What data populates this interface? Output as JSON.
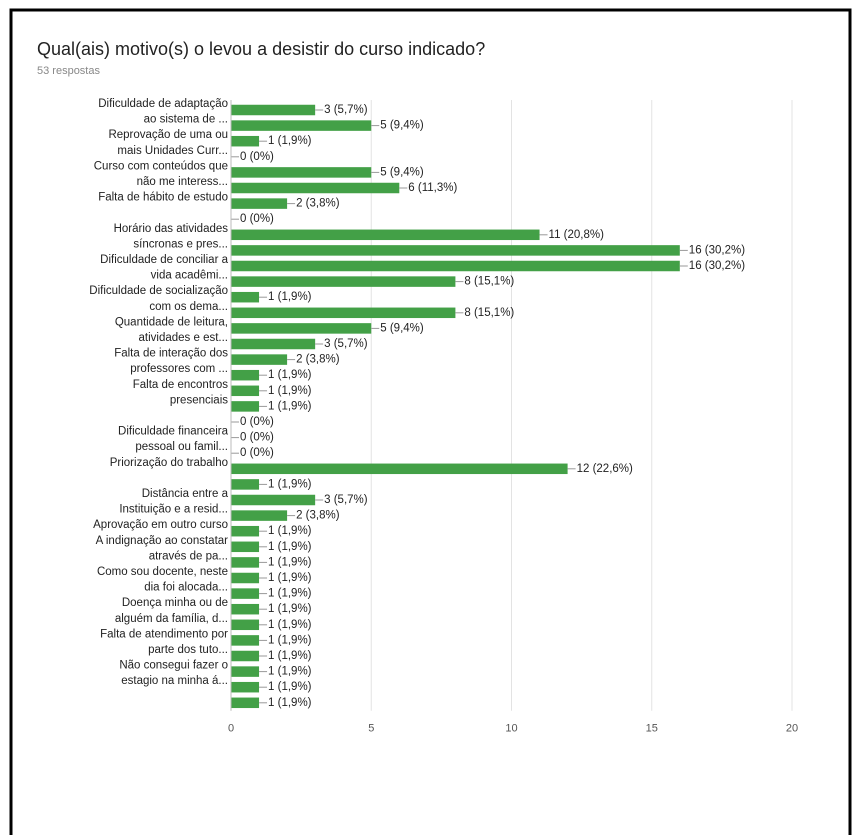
{
  "chart_data": {
    "type": "bar",
    "orientation": "horizontal",
    "title": "Qual(ais) motivo(s) o levou a desistir do curso indicado?",
    "subtitle": "53 respostas",
    "color": "#43a047",
    "grid": true,
    "xlim": [
      0,
      20
    ],
    "xticks": [
      0,
      5,
      10,
      15,
      20
    ],
    "categories": [
      "Dificuldade de adaptação",
      "ao sistema de ...",
      "Reprovação de uma ou",
      "mais Unidades Curr...",
      "Curso com conteúdos que",
      "não me interess...",
      "Falta de hábito de estudo",
      null,
      "Horário das atividades",
      "síncronas e pres...",
      "Dificuldade de conciliar a",
      "vida acadêmi...",
      "Dificuldade de socialização",
      "com os dema...",
      "Quantidade de leitura,",
      "atividades e est...",
      "Falta de interação dos",
      "professores com ...",
      "Falta de encontros",
      "presenciais",
      null,
      "Dificuldade financeira",
      "pessoal ou famil...",
      "Priorização do trabalho",
      null,
      "Distância entre a",
      "Instituição e a resid...",
      "Aprovação em outro curso",
      "A indignação ao constatar",
      "através de pa...",
      "Como sou docente, neste",
      "dia foi alocada...",
      "Doença minha ou de",
      "alguém da família, d...",
      "Falta de atendimento por",
      "parte dos tuto...",
      "Não consegui fazer o",
      "estagio na minha á...",
      null
    ],
    "values": [
      3,
      5,
      1,
      0,
      5,
      6,
      2,
      0,
      11,
      16,
      16,
      8,
      1,
      8,
      5,
      3,
      2,
      1,
      1,
      1,
      0,
      0,
      0,
      12,
      1,
      3,
      2,
      1,
      1,
      1,
      1,
      1,
      1,
      1,
      1,
      1,
      1,
      1,
      1
    ],
    "value_labels": [
      "3 (5,7%)",
      "5 (9,4%)",
      "1 (1,9%)",
      "0 (0%)",
      "5 (9,4%)",
      "6 (11,3%)",
      "2 (3,8%)",
      "0 (0%)",
      "11 (20,8%)",
      "16 (30,2%)",
      "16 (30,2%)",
      "8 (15,1%)",
      "1 (1,9%)",
      "8 (15,1%)",
      "5 (9,4%)",
      "3 (5,7%)",
      "2 (3,8%)",
      "1 (1,9%)",
      "1 (1,9%)",
      "1 (1,9%)",
      "0 (0%)",
      "0 (0%)",
      "0 (0%)",
      "12 (22,6%)",
      "1 (1,9%)",
      "3 (5,7%)",
      "2 (3,8%)",
      "1 (1,9%)",
      "1 (1,9%)",
      "1 (1,9%)",
      "1 (1,9%)",
      "1 (1,9%)",
      "1 (1,9%)",
      "1 (1,9%)",
      "1 (1,9%)",
      "1 (1,9%)",
      "1 (1,9%)",
      "1 (1,9%)",
      "1 (1,9%)"
    ]
  }
}
